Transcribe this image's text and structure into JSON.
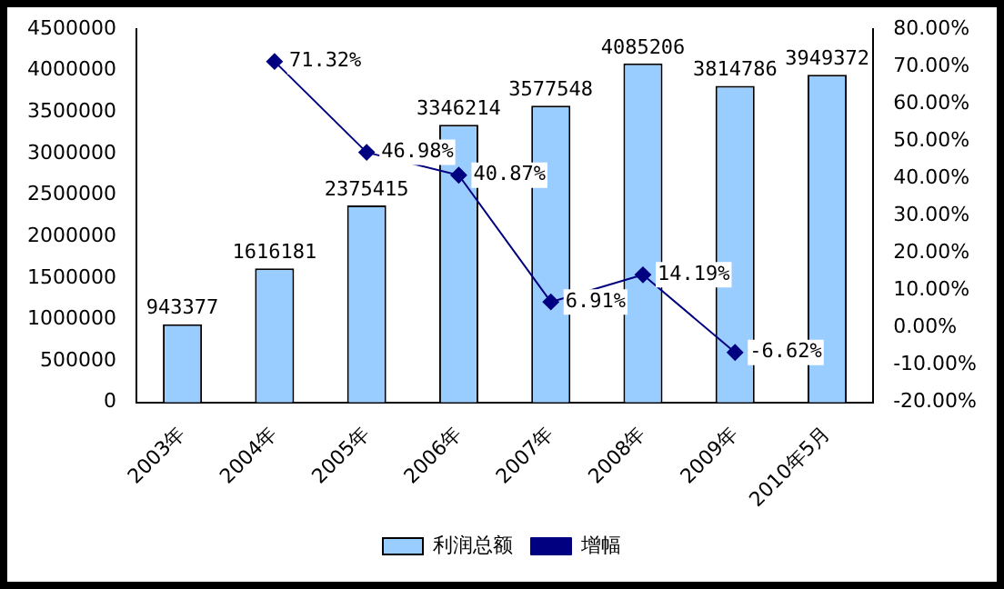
{
  "chart_data": {
    "type": "bar",
    "categories": [
      "2003年",
      "2004年",
      "2005年",
      "2006年",
      "2007年",
      "2008年",
      "2009年",
      "2010年5月"
    ],
    "series": [
      {
        "name": "利润总额",
        "color": "#99ccff",
        "values": [
          943377,
          1616181,
          2375415,
          3346214,
          3577548,
          4085206,
          3814786,
          3949372
        ],
        "value_labels": [
          "943377",
          "1616181",
          "2375415",
          "3346214",
          "3577548",
          "4085206",
          "3814786",
          "3949372"
        ]
      },
      {
        "name": "增幅",
        "type": "line",
        "axis": "y2",
        "color": "#000080",
        "marker": "diamond",
        "values": [
          null,
          71.32,
          46.98,
          40.87,
          6.91,
          14.19,
          -6.62,
          null
        ],
        "value_labels": [
          null,
          "71.32%",
          "46.98%",
          "40.87%",
          "6.91%",
          "14.19%",
          "-6.62%",
          null
        ]
      }
    ],
    "ylim": [
      0,
      4500000
    ],
    "yticks": [
      0,
      500000,
      1000000,
      1500000,
      2000000,
      2500000,
      3000000,
      3500000,
      4000000,
      4500000
    ],
    "y2lim": [
      -20,
      80
    ],
    "y2ticks": [
      {
        "value": -20,
        "label": "-20.00%"
      },
      {
        "value": -10,
        "label": "-10.00%"
      },
      {
        "value": 0,
        "label": "0.00%"
      },
      {
        "value": 10,
        "label": "10.00%"
      },
      {
        "value": 20,
        "label": "20.00%"
      },
      {
        "value": 30,
        "label": "30.00%"
      },
      {
        "value": 40,
        "label": "40.00%"
      },
      {
        "value": 50,
        "label": "50.00%"
      },
      {
        "value": 60,
        "label": "60.00%"
      },
      {
        "value": 70,
        "label": "70.00%"
      },
      {
        "value": 80,
        "label": "80.00%"
      }
    ],
    "grid": false,
    "legend": "bottom"
  }
}
